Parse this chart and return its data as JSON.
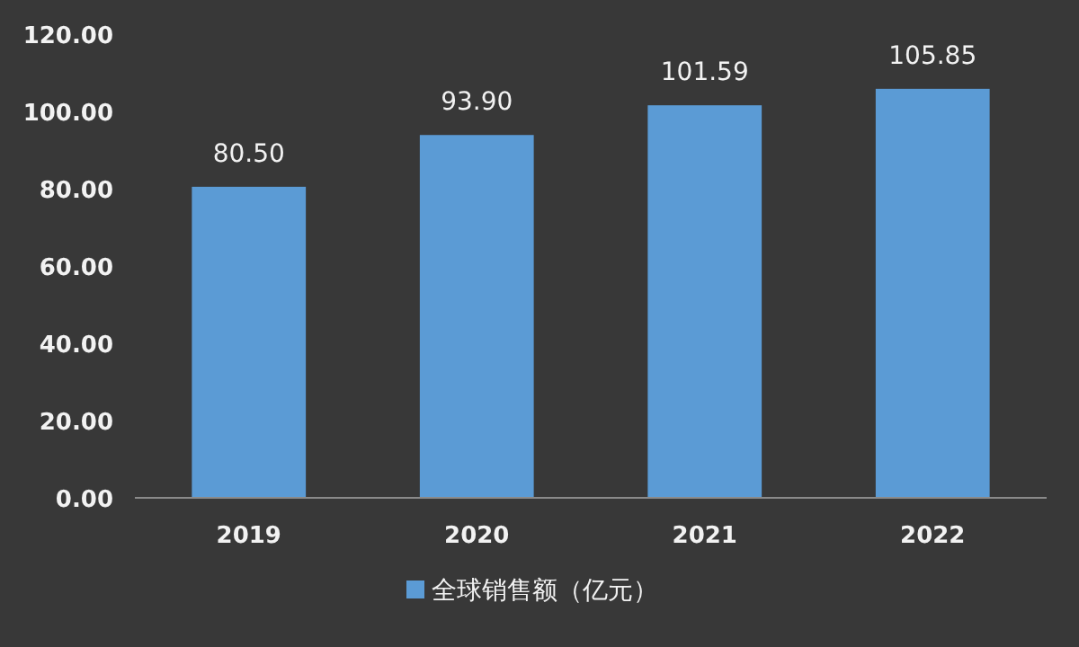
{
  "chart_data": {
    "type": "bar",
    "categories": [
      "2019",
      "2020",
      "2021",
      "2022"
    ],
    "series": [
      {
        "name": "全球销售额（亿元）",
        "color": "#5b9bd5",
        "values": [
          80.5,
          93.9,
          101.59,
          105.85
        ],
        "value_labels": [
          "80.50",
          "93.90",
          "101.59",
          "105.85"
        ]
      }
    ],
    "ylim": [
      0,
      120
    ],
    "yticks": [
      {
        "value": 0,
        "label": "0.00"
      },
      {
        "value": 20,
        "label": "20.00"
      },
      {
        "value": 40,
        "label": "40.00"
      },
      {
        "value": 60,
        "label": "60.00"
      },
      {
        "value": 80,
        "label": "80.00"
      },
      {
        "value": 100,
        "label": "100.00"
      },
      {
        "value": 120,
        "label": "120.00"
      }
    ],
    "legend": "bottom"
  }
}
